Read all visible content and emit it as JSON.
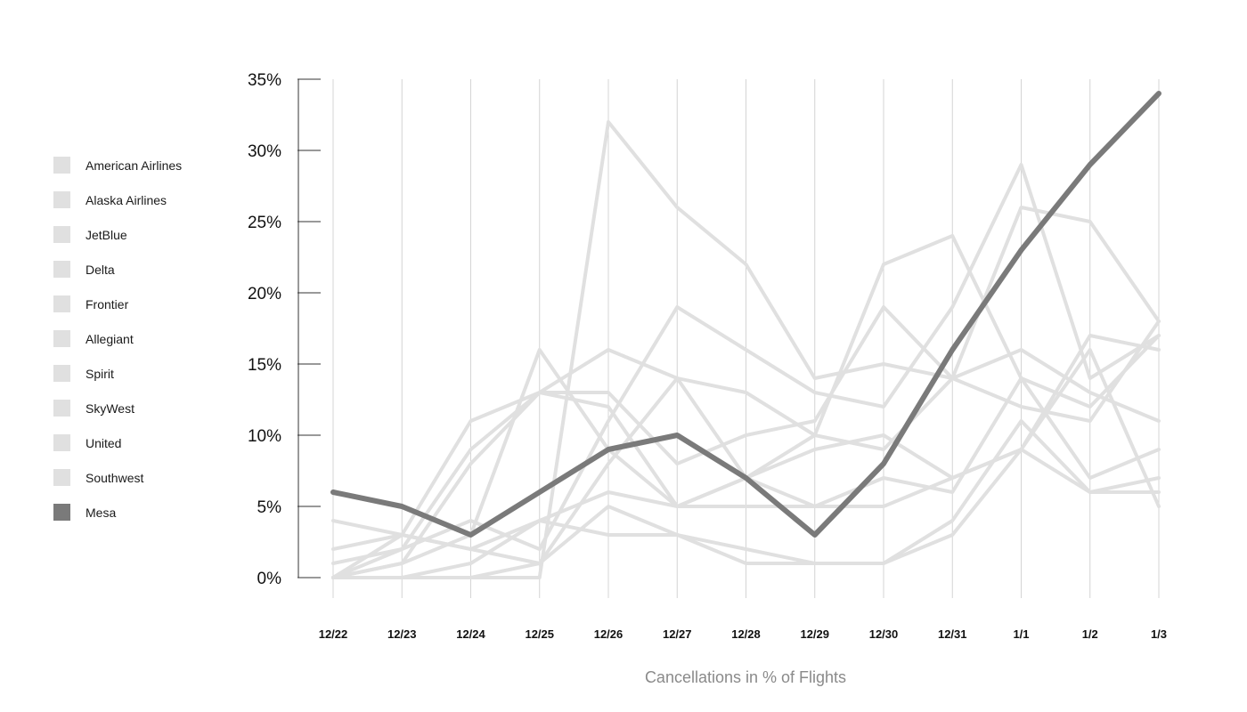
{
  "chart_data": {
    "type": "line",
    "title": "",
    "xlabel": "Cancellations in % of Flights",
    "ylabel": "",
    "categories": [
      "12/22",
      "12/23",
      "12/24",
      "12/25",
      "12/26",
      "12/27",
      "12/28",
      "12/29",
      "12/30",
      "12/31",
      "1/1",
      "1/2",
      "1/3"
    ],
    "ylim": [
      0,
      35
    ],
    "yticks": [
      0,
      5,
      10,
      15,
      20,
      25,
      30,
      35
    ],
    "ytick_labels": [
      "0%",
      "5%",
      "10%",
      "15%",
      "20%",
      "25%",
      "30%",
      "35%"
    ],
    "grid": "vertical",
    "legend_position": "left",
    "highlight_series": "Mesa",
    "colors": {
      "muted": "#e0e0e0",
      "highlight": "#7a7a7a",
      "gridline": "#d4d4d4",
      "axis": "#333333"
    },
    "series": [
      {
        "name": "American Airlines",
        "values": [
          0,
          0,
          0,
          1,
          8,
          14,
          13,
          10,
          9,
          14,
          12,
          11,
          18
        ]
      },
      {
        "name": "Alaska Airlines",
        "values": [
          0,
          0,
          1,
          4,
          6,
          5,
          5,
          5,
          7,
          6,
          14,
          12,
          17
        ]
      },
      {
        "name": "JetBlue",
        "values": [
          2,
          3,
          2,
          1,
          5,
          3,
          1,
          1,
          1,
          3,
          9,
          17,
          16
        ]
      },
      {
        "name": "Delta",
        "values": [
          4,
          3,
          2,
          4,
          3,
          3,
          2,
          1,
          1,
          4,
          11,
          6,
          6
        ]
      },
      {
        "name": "Frontier",
        "values": [
          0,
          1,
          8,
          13,
          12,
          5,
          7,
          9,
          10,
          7,
          9,
          16,
          5
        ]
      },
      {
        "name": "Allegiant",
        "values": [
          0,
          2,
          9,
          13,
          13,
          8,
          10,
          11,
          19,
          14,
          26,
          25,
          18
        ]
      },
      {
        "name": "Spirit",
        "values": [
          0,
          0,
          0,
          0,
          32,
          26,
          22,
          14,
          15,
          14,
          16,
          13,
          11
        ]
      },
      {
        "name": "SkyWest",
        "values": [
          1,
          2,
          4,
          2,
          11,
          19,
          16,
          13,
          12,
          19,
          29,
          14,
          17
        ]
      },
      {
        "name": "United",
        "values": [
          0,
          3,
          11,
          13,
          16,
          14,
          7,
          5,
          5,
          7,
          9,
          6,
          7
        ]
      },
      {
        "name": "Southwest",
        "values": [
          0,
          1,
          3,
          16,
          9,
          5,
          7,
          10,
          22,
          24,
          14,
          7,
          9
        ]
      },
      {
        "name": "Mesa",
        "values": [
          6,
          5,
          3,
          6,
          9,
          10,
          7,
          3,
          8,
          16,
          23,
          29,
          34
        ]
      }
    ]
  }
}
